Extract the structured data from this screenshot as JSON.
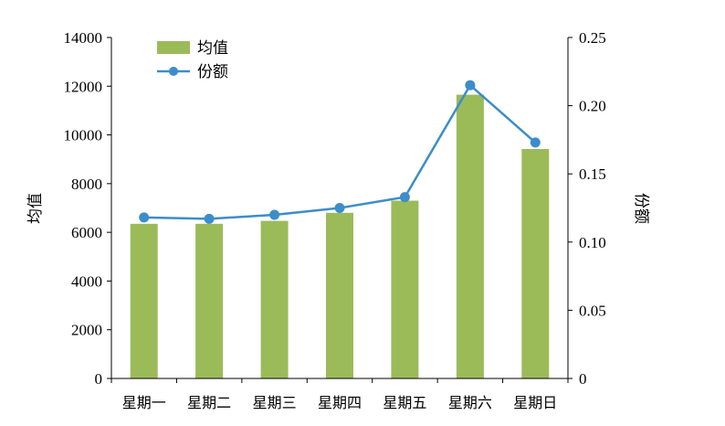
{
  "chart_data": {
    "type": "bar",
    "categories": [
      "星期一",
      "星期二",
      "星期三",
      "星期四",
      "星期五",
      "星期六",
      "星期日"
    ],
    "series": [
      {
        "name": "均值",
        "type": "bar",
        "axis": "left",
        "color": "#9bbb59",
        "values": [
          6350,
          6350,
          6470,
          6800,
          7300,
          11650,
          9420
        ]
      },
      {
        "name": "份额",
        "type": "line",
        "axis": "right",
        "color": "#3c8dc9",
        "values": [
          0.118,
          0.117,
          0.12,
          0.125,
          0.133,
          0.215,
          0.173
        ]
      }
    ],
    "y_left": {
      "label": "均值",
      "ylim": [
        0,
        14000
      ],
      "ticks": [
        "0",
        "2000",
        "4000",
        "6000",
        "8000",
        "10000",
        "12000",
        "14000"
      ]
    },
    "y_right": {
      "label": "份额",
      "ylim": [
        0,
        0.25
      ],
      "ticks": [
        "0",
        "0.05",
        "0.10",
        "0.15",
        "0.20",
        "0.25"
      ]
    },
    "legend": {
      "placement": "top-left",
      "entries": [
        "均值",
        "份额"
      ]
    },
    "grid": false
  }
}
